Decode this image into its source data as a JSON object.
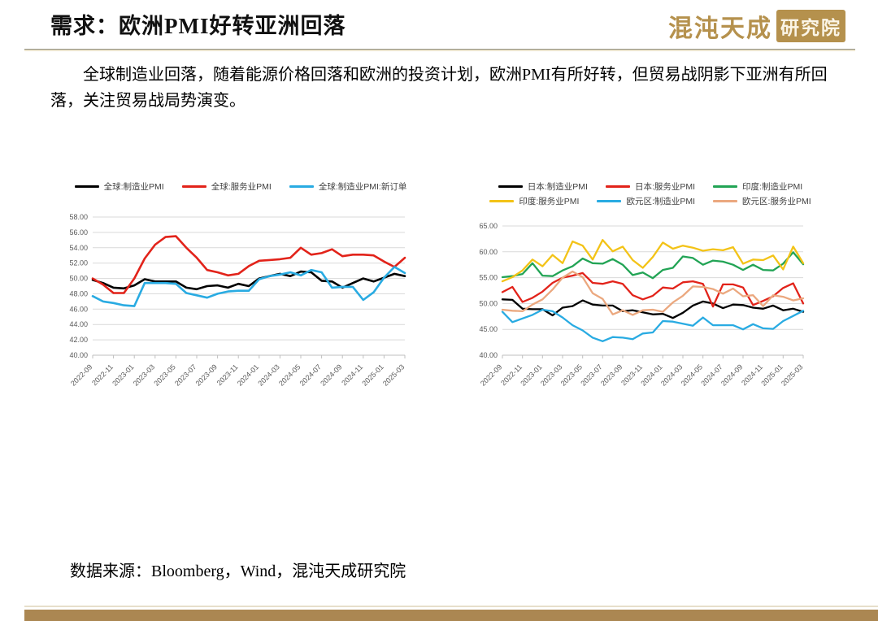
{
  "slide": {
    "title": "需求：欧洲PMI好转亚洲回落",
    "logo": {
      "brand": "混沌天成",
      "suffix": "研究院"
    },
    "body_text": "全球制造业回落，随着能源价格回落和欧洲的投资计划，欧洲PMI有所好转，但贸易战阴影下亚洲有所回落，关注贸易战局势演变。",
    "source": "数据来源：Bloomberg，Wind，混沌天成研究院"
  },
  "colors": {
    "accent_gold": "#b5914d",
    "bottom_bar": "#ab8752",
    "gridline": "#d9d9d9",
    "axis": "#bfbfbf",
    "axis_label": "#595959"
  },
  "chart_data": [
    {
      "type": "line",
      "title": "",
      "xlabel": "",
      "ylabel": "",
      "ylim": [
        40,
        58
      ],
      "ystep": 2,
      "xtick_every": 2,
      "legend_per_row": 3,
      "legend_position": "top",
      "grid": true,
      "categories": [
        "2022-09",
        "2022-10",
        "2022-11",
        "2022-12",
        "2023-01",
        "2023-02",
        "2023-03",
        "2023-04",
        "2023-05",
        "2023-06",
        "2023-07",
        "2023-08",
        "2023-09",
        "2023-10",
        "2023-11",
        "2023-12",
        "2024-01",
        "2024-02",
        "2024-03",
        "2024-04",
        "2024-05",
        "2024-06",
        "2024-07",
        "2024-08",
        "2024-09",
        "2024-10",
        "2024-11",
        "2024-12",
        "2025-01",
        "2025-02",
        "2025-03"
      ],
      "series": [
        {
          "name": "全球:制造业PMI",
          "color": "#000000",
          "values": [
            49.8,
            49.4,
            48.8,
            48.7,
            49.1,
            49.9,
            49.6,
            49.6,
            49.6,
            48.8,
            48.6,
            49.0,
            49.1,
            48.8,
            49.3,
            49.0,
            50.0,
            50.3,
            50.6,
            50.3,
            50.9,
            50.8,
            49.7,
            49.6,
            48.8,
            49.4,
            50.0,
            49.6,
            50.1,
            50.6,
            50.3
          ]
        },
        {
          "name": "全球:服务业PMI",
          "color": "#e2231a",
          "values": [
            50.0,
            49.2,
            48.1,
            48.1,
            50.0,
            52.6,
            54.4,
            55.4,
            55.5,
            54.0,
            52.7,
            51.1,
            50.8,
            50.4,
            50.6,
            51.6,
            52.3,
            52.4,
            52.5,
            52.7,
            54.0,
            53.1,
            53.3,
            53.8,
            52.9,
            53.1,
            53.1,
            53.0,
            52.2,
            51.5,
            52.7
          ]
        },
        {
          "name": "全球:制造业PMI:新订单",
          "color": "#29abe2",
          "values": [
            47.7,
            47.0,
            46.8,
            46.5,
            46.4,
            49.4,
            49.4,
            49.4,
            49.3,
            48.1,
            47.8,
            47.5,
            48.0,
            48.3,
            48.4,
            48.4,
            49.9,
            50.3,
            50.5,
            50.8,
            50.4,
            51.1,
            50.8,
            48.8,
            48.9,
            48.9,
            47.2,
            48.2,
            50.1,
            51.5,
            50.7
          ]
        }
      ]
    },
    {
      "type": "line",
      "title": "",
      "xlabel": "",
      "ylabel": "",
      "ylim": [
        40,
        65
      ],
      "ystep": 5,
      "xtick_every": 2,
      "legend_per_row": 3,
      "legend_position": "top",
      "grid": true,
      "categories": [
        "2022-09",
        "2022-10",
        "2022-11",
        "2022-12",
        "2023-01",
        "2023-02",
        "2023-03",
        "2023-04",
        "2023-05",
        "2023-06",
        "2023-07",
        "2023-08",
        "2023-09",
        "2023-10",
        "2023-11",
        "2023-12",
        "2024-01",
        "2024-02",
        "2024-03",
        "2024-04",
        "2024-05",
        "2024-06",
        "2024-07",
        "2024-08",
        "2024-09",
        "2024-10",
        "2024-11",
        "2024-12",
        "2025-01",
        "2025-02",
        "2025-03"
      ],
      "series": [
        {
          "name": "日本:制造业PMI",
          "color": "#000000",
          "values": [
            50.8,
            50.7,
            49.0,
            48.9,
            48.9,
            47.7,
            49.2,
            49.5,
            50.6,
            49.8,
            49.6,
            49.6,
            48.5,
            48.7,
            48.3,
            47.9,
            48.0,
            47.2,
            48.2,
            49.6,
            50.4,
            50.0,
            49.1,
            49.8,
            49.7,
            49.2,
            49.0,
            49.6,
            48.7,
            49.0,
            48.4
          ]
        },
        {
          "name": "日本:服务业PMI",
          "color": "#e2231a",
          "values": [
            52.2,
            53.2,
            50.3,
            51.1,
            52.3,
            54.0,
            55.0,
            55.4,
            55.9,
            54.0,
            53.8,
            54.3,
            53.8,
            51.6,
            50.8,
            51.5,
            53.1,
            52.9,
            54.1,
            54.3,
            53.8,
            49.4,
            53.7,
            53.7,
            53.1,
            49.7,
            50.5,
            51.4,
            53.0,
            53.9,
            50.0
          ]
        },
        {
          "name": "印度:制造业PMI",
          "color": "#22a455",
          "values": [
            55.1,
            55.3,
            55.7,
            57.8,
            55.4,
            55.3,
            56.4,
            57.2,
            58.7,
            57.8,
            57.7,
            58.6,
            57.5,
            55.5,
            56.0,
            54.9,
            56.5,
            56.9,
            59.1,
            58.8,
            57.5,
            58.3,
            58.1,
            57.5,
            56.5,
            57.5,
            56.5,
            56.4,
            57.7,
            59.9,
            57.6
          ]
        },
        {
          "name": "印度:服务业PMI",
          "color": "#f3c317",
          "values": [
            54.3,
            55.1,
            56.4,
            58.5,
            57.2,
            59.4,
            57.8,
            62.0,
            61.2,
            58.5,
            62.3,
            60.1,
            61.0,
            58.4,
            56.9,
            59.0,
            61.8,
            60.6,
            61.2,
            60.8,
            60.2,
            60.5,
            60.3,
            60.9,
            57.7,
            58.5,
            58.4,
            59.3,
            56.6,
            61.0,
            57.8
          ]
        },
        {
          "name": "欧元区:制造业PMI",
          "color": "#29abe2",
          "values": [
            48.4,
            46.4,
            47.1,
            47.8,
            48.8,
            48.5,
            47.3,
            45.8,
            44.8,
            43.4,
            42.7,
            43.5,
            43.4,
            43.1,
            44.2,
            44.4,
            46.6,
            46.5,
            46.1,
            45.7,
            47.3,
            45.8,
            45.8,
            45.8,
            45.0,
            46.0,
            45.2,
            45.1,
            46.6,
            47.6,
            48.6
          ]
        },
        {
          "name": "欧元区:服务业PMI",
          "color": "#eba87f",
          "values": [
            48.8,
            48.6,
            48.5,
            49.8,
            50.8,
            52.7,
            55.0,
            56.2,
            55.1,
            52.0,
            50.9,
            47.9,
            48.7,
            47.8,
            48.7,
            48.8,
            48.4,
            50.2,
            51.5,
            53.3,
            53.2,
            52.8,
            51.9,
            52.9,
            51.4,
            51.6,
            49.5,
            51.6,
            51.3,
            50.6,
            51.0
          ]
        }
      ]
    }
  ]
}
